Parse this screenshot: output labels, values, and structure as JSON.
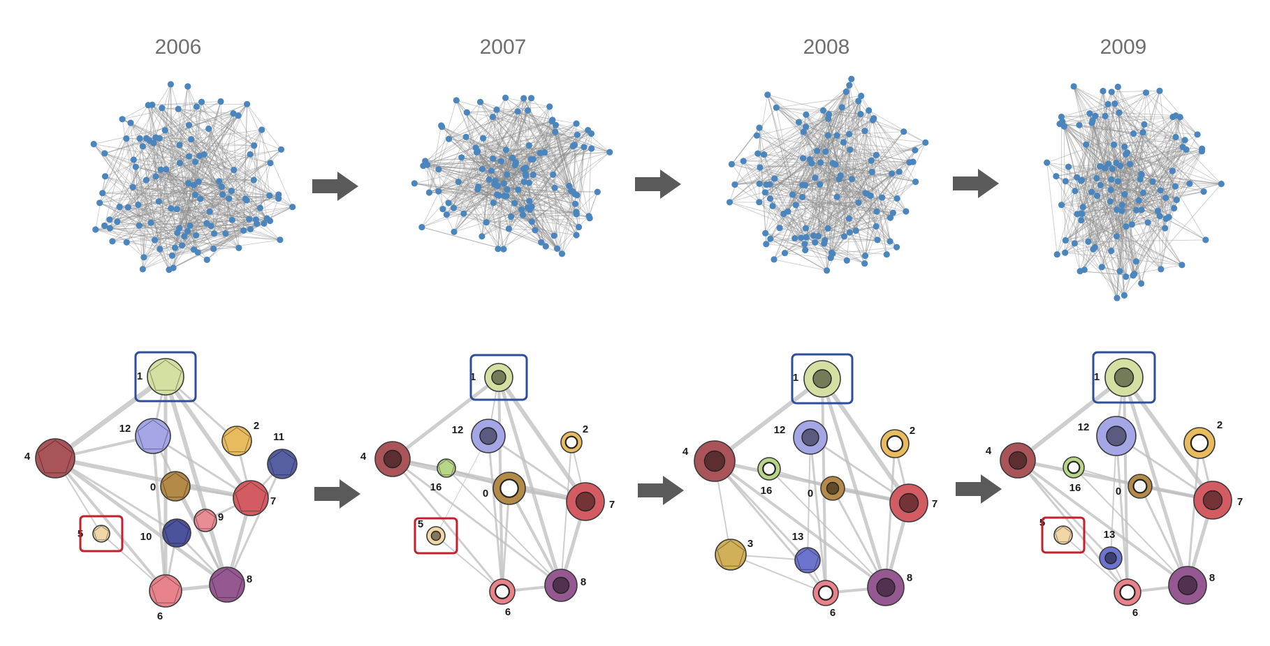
{
  "years": [
    "2006",
    "2007",
    "2008",
    "2009"
  ],
  "colors": {
    "network_node": "#4a86bd",
    "network_edge": "#8c8c8c",
    "arrow": "#5a5a5a",
    "summary_edge": "#bdbdbd",
    "highlight_blue": "#2e4d9a",
    "highlight_red": "#c41f2a"
  },
  "network_seeds": [
    11,
    23,
    37,
    53
  ],
  "communities": {
    "0": {
      "label": "0",
      "fill": "#b38a47"
    },
    "1": {
      "label": "1",
      "fill": "#d3e0a2"
    },
    "2": {
      "label": "2",
      "fill": "#e8bb5e"
    },
    "3": {
      "label": "3",
      "fill": "#d2b05a"
    },
    "4": {
      "label": "4",
      "fill": "#a95458"
    },
    "5": {
      "label": "5",
      "fill": "#f1d7a8"
    },
    "6": {
      "label": "6",
      "fill": "#e9838b"
    },
    "7": {
      "label": "7",
      "fill": "#d25c62"
    },
    "8": {
      "label": "8",
      "fill": "#955891"
    },
    "9": {
      "label": "9",
      "fill": "#e98c94"
    },
    "10": {
      "label": "10",
      "fill": "#4d529c"
    },
    "11": {
      "label": "11",
      "fill": "#555fa2"
    },
    "12": {
      "label": "12",
      "fill": "#a4a6e6"
    },
    "13": {
      "label": "13",
      "fill": "#6c74cd"
    },
    "16": {
      "label": "16",
      "fill": "#b8d58a"
    }
  },
  "summaries": [
    {
      "year": "2006",
      "nodes": [
        "1",
        "12",
        "2",
        "11",
        "4",
        "0",
        "7",
        "9",
        "5",
        "10",
        "6",
        "8"
      ],
      "highlight_blue": "1",
      "highlight_red": "5"
    },
    {
      "year": "2007",
      "nodes": [
        "1",
        "12",
        "2",
        "4",
        "16",
        "0",
        "7",
        "5",
        "6",
        "8"
      ],
      "highlight_blue": "1",
      "highlight_red": "5"
    },
    {
      "year": "2008",
      "nodes": [
        "1",
        "12",
        "2",
        "4",
        "16",
        "0",
        "7",
        "3",
        "13",
        "6",
        "8"
      ],
      "highlight_blue": "1",
      "highlight_red": null
    },
    {
      "year": "2009",
      "nodes": [
        "1",
        "12",
        "2",
        "4",
        "16",
        "0",
        "7",
        "5",
        "13",
        "6",
        "8"
      ],
      "highlight_blue": "1",
      "highlight_red": "5"
    }
  ]
}
